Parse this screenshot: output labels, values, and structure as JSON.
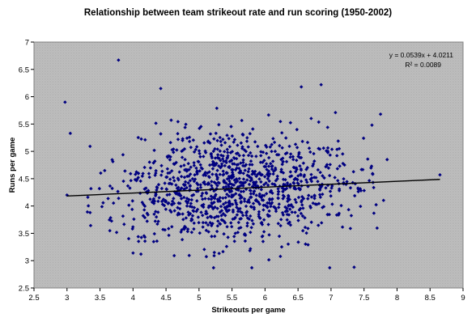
{
  "chart_data": {
    "type": "scatter",
    "title": "Relationship between team strikeout rate and run scoring (1950-2002)",
    "xlabel": "Strikeouts per game",
    "ylabel": "Runs per game",
    "xlim": [
      2.5,
      9
    ],
    "ylim": [
      2.5,
      7
    ],
    "xticks": [
      "2.5",
      "3",
      "3.5",
      "4",
      "4.5",
      "5",
      "5.5",
      "6",
      "6.5",
      "7",
      "7.5",
      "8",
      "8.5",
      "9"
    ],
    "yticks": [
      "2.5",
      "3",
      "3.5",
      "4",
      "4.5",
      "5",
      "5.5",
      "6",
      "6.5",
      "7"
    ],
    "grid": false,
    "background_color": "#c0c0c0",
    "marker_color": "#000080",
    "trendline": {
      "equation": "y = 0.0539x + 4.0211",
      "r_squared": "R² = 0.0089",
      "slope": 0.0539,
      "intercept": 4.0211,
      "x_range": [
        3.0,
        8.65
      ],
      "color": "#000000"
    },
    "notable_points": [
      {
        "x": 2.97,
        "y": 5.9
      },
      {
        "x": 3.05,
        "y": 5.33
      },
      {
        "x": 3.78,
        "y": 6.67
      },
      {
        "x": 4.42,
        "y": 6.15
      },
      {
        "x": 6.85,
        "y": 6.22
      },
      {
        "x": 6.55,
        "y": 6.18
      },
      {
        "x": 7.35,
        "y": 2.88
      },
      {
        "x": 6.98,
        "y": 2.87
      },
      {
        "x": 5.22,
        "y": 2.87
      },
      {
        "x": 5.8,
        "y": 2.87
      },
      {
        "x": 8.65,
        "y": 4.57
      },
      {
        "x": 7.85,
        "y": 4.85
      },
      {
        "x": 7.75,
        "y": 5.68
      },
      {
        "x": 7.62,
        "y": 5.48
      },
      {
        "x": 3.35,
        "y": 3.88
      },
      {
        "x": 4.12,
        "y": 3.12
      },
      {
        "x": 3.0,
        "y": 4.2
      }
    ],
    "point_cloud": {
      "count": 1150,
      "center": [
        5.55,
        4.33
      ],
      "x_sd": 0.9,
      "y_sd": 0.52,
      "x_range": [
        3.3,
        7.8
      ],
      "y_range": [
        3.0,
        6.0
      ]
    }
  }
}
